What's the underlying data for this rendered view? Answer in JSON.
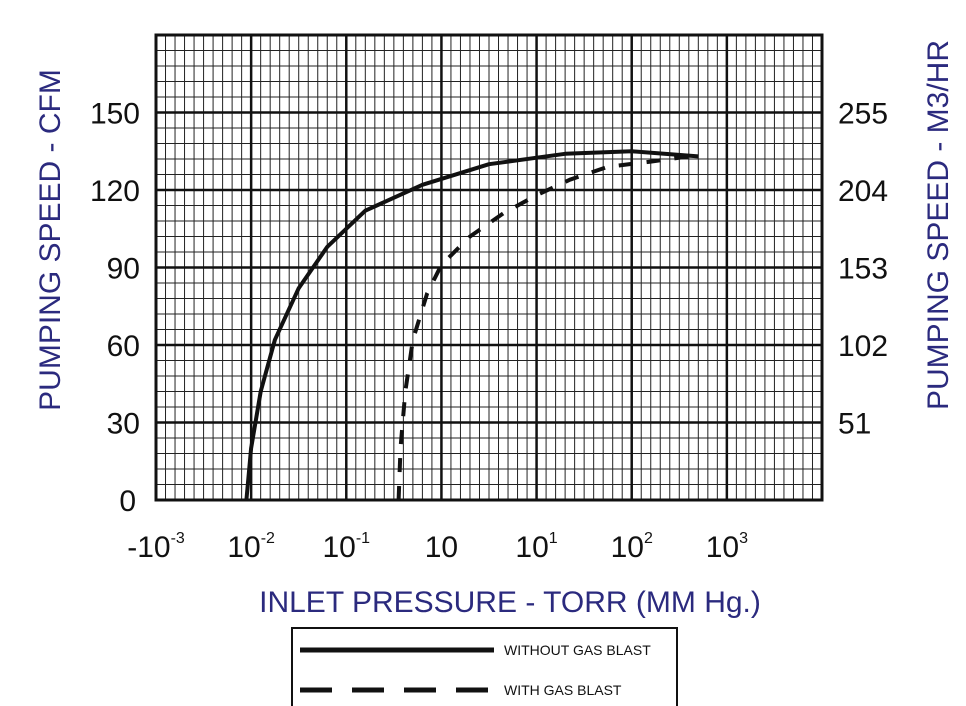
{
  "chart_data": {
    "type": "line",
    "xlabel": "INLET PRESSURE - TORR (MM Hg.)",
    "ylabel_left": "PUMPING SPEED - CFM",
    "ylabel_right": "PUMPING SPEED - M3/HR",
    "x_tick_labels": [
      {
        "base": "-10",
        "exp": "-3"
      },
      {
        "base": "10",
        "exp": "-2"
      },
      {
        "base": "10",
        "exp": "-1"
      },
      {
        "base": "10",
        "exp": ""
      },
      {
        "base": "10",
        "exp": "1"
      },
      {
        "base": "10",
        "exp": "2"
      },
      {
        "base": "10",
        "exp": "3"
      }
    ],
    "y_left_ticks": [
      0,
      30,
      60,
      90,
      120,
      150
    ],
    "y_right_ticks": [
      "51",
      "102",
      "153",
      "204",
      "255"
    ],
    "ylim": [
      0,
      180
    ],
    "x_decades": 7,
    "grid": true,
    "legend_position": "bottom-center",
    "series": [
      {
        "name": "WITHOUT GAS BLAST",
        "style": "solid",
        "x": [
          0.95,
          1.0,
          1.1,
          1.25,
          1.5,
          1.8,
          2.2,
          2.8,
          3.5,
          4.3,
          5.0,
          5.7
        ],
        "y": [
          0,
          20,
          42,
          62,
          82,
          98,
          112,
          122,
          130,
          134,
          135,
          133
        ]
      },
      {
        "name": "WITH GAS BLAST",
        "style": "dashed",
        "x": [
          2.55,
          2.57,
          2.62,
          2.7,
          2.85,
          3.0,
          3.3,
          3.65,
          4.0,
          4.35,
          4.75,
          5.2,
          5.6
        ],
        "y": [
          0,
          20,
          42,
          62,
          80,
          91,
          102,
          111,
          118,
          124,
          129,
          131,
          133
        ]
      }
    ],
    "legend": [
      {
        "label": "WITHOUT GAS BLAST",
        "style": "solid"
      },
      {
        "label": "WITH GAS BLAST",
        "style": "dashed"
      }
    ]
  }
}
